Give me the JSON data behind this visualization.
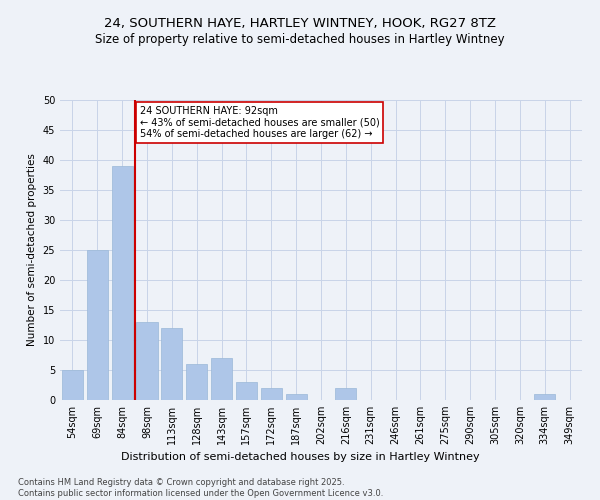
{
  "title": "24, SOUTHERN HAYE, HARTLEY WINTNEY, HOOK, RG27 8TZ",
  "subtitle": "Size of property relative to semi-detached houses in Hartley Wintney",
  "xlabel": "Distribution of semi-detached houses by size in Hartley Wintney",
  "ylabel": "Number of semi-detached properties",
  "categories": [
    "54sqm",
    "69sqm",
    "84sqm",
    "98sqm",
    "113sqm",
    "128sqm",
    "143sqm",
    "157sqm",
    "172sqm",
    "187sqm",
    "202sqm",
    "216sqm",
    "231sqm",
    "246sqm",
    "261sqm",
    "275sqm",
    "290sqm",
    "305sqm",
    "320sqm",
    "334sqm",
    "349sqm"
  ],
  "values": [
    5,
    25,
    39,
    13,
    12,
    6,
    7,
    3,
    2,
    1,
    0,
    2,
    0,
    0,
    0,
    0,
    0,
    0,
    0,
    1,
    0
  ],
  "bar_color": "#aec6e8",
  "bar_edge_color": "#9ab8d8",
  "grid_color": "#c8d4e8",
  "background_color": "#eef2f8",
  "property_line_color": "#cc0000",
  "property_line_xindex": 2.5,
  "annotation_text": "24 SOUTHERN HAYE: 92sqm\n← 43% of semi-detached houses are smaller (50)\n54% of semi-detached houses are larger (62) →",
  "annotation_box_facecolor": "#ffffff",
  "annotation_box_edgecolor": "#cc0000",
  "ylim": [
    0,
    50
  ],
  "yticks": [
    0,
    5,
    10,
    15,
    20,
    25,
    30,
    35,
    40,
    45,
    50
  ],
  "footer_text": "Contains HM Land Registry data © Crown copyright and database right 2025.\nContains public sector information licensed under the Open Government Licence v3.0.",
  "title_fontsize": 9.5,
  "subtitle_fontsize": 8.5,
  "xlabel_fontsize": 8,
  "ylabel_fontsize": 7.5,
  "tick_fontsize": 7,
  "annotation_fontsize": 7,
  "footer_fontsize": 6
}
